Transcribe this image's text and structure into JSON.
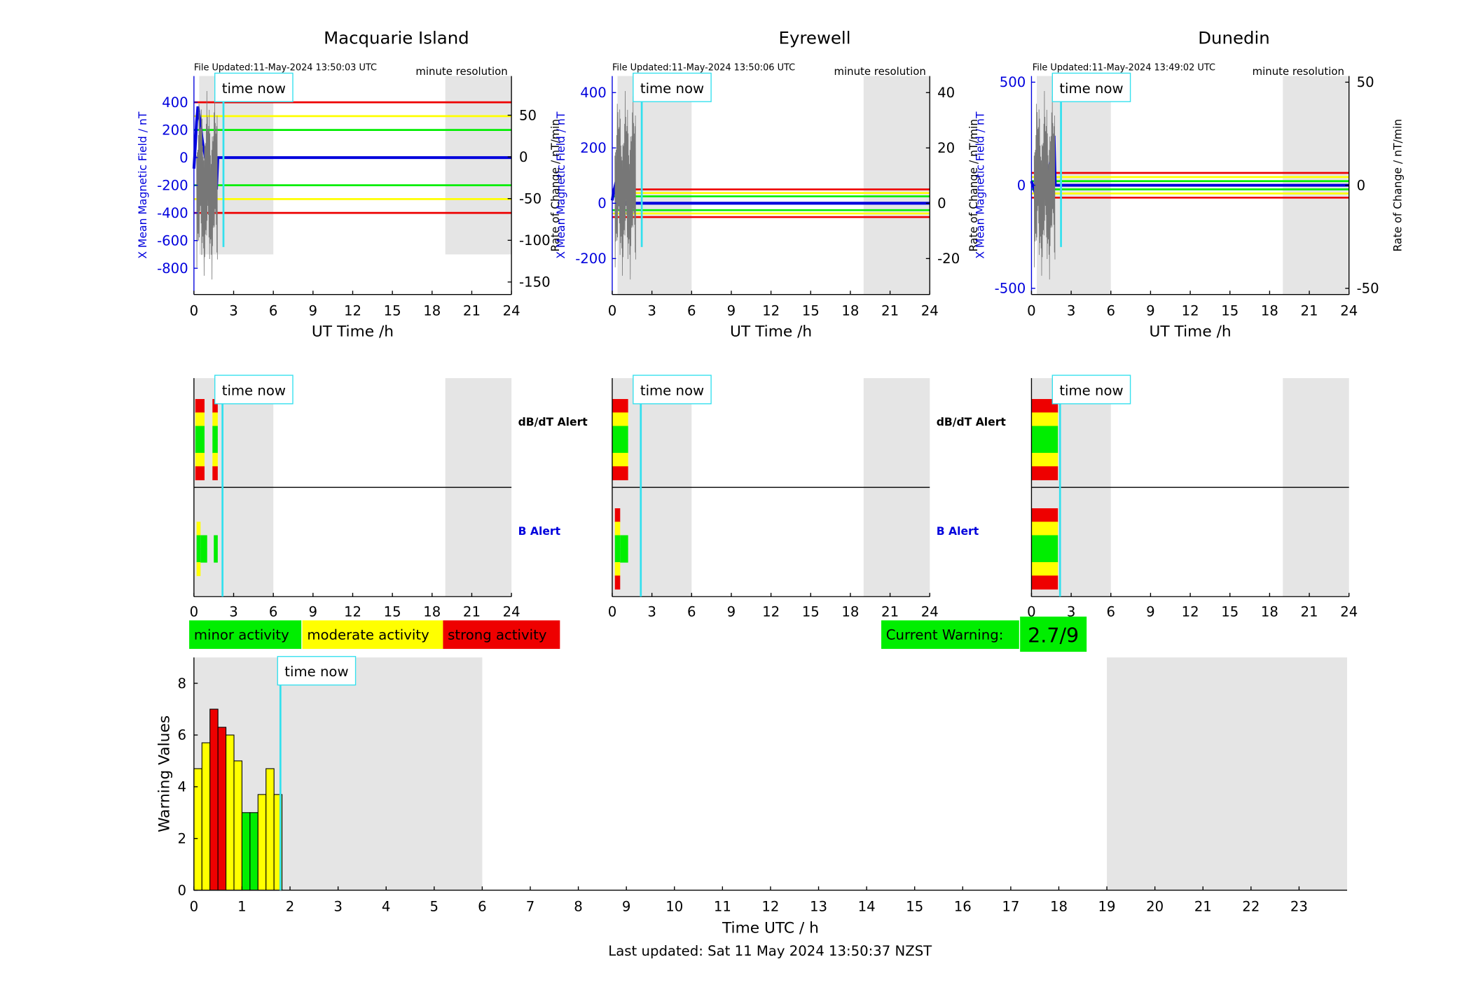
{
  "time_now_label": "time now",
  "now_hour": 1.8,
  "colors": {
    "minor": "#00ee00",
    "moderate": "#ffff00",
    "strong": "#ee0000",
    "shade": "#e5e5e5",
    "now_line": "#33e0ee",
    "field": "#0000dd"
  },
  "panels": [
    {
      "station": "Macquarie Island",
      "file_updated": "File Updated:11-May-2024 13:50:03 UTC",
      "resolution": "minute resolution",
      "ylabel_left": "X Mean Magnetic Field / nT",
      "ylabel_right": "Rate of Change / nT/min",
      "xlabel": "UT Time /h",
      "chart_data": {
        "type": "line",
        "title": "Macquarie Island",
        "xlabel": "UT Time /h",
        "ylabel": "X Mean Magnetic Field / nT",
        "xlim": [
          0,
          24
        ],
        "ylim_left": [
          -990,
          590
        ],
        "left_ticks": [
          400,
          200,
          0,
          -200,
          -400,
          -600,
          -800
        ],
        "ylim_right": [
          -165,
          97
        ],
        "right_ticks": [
          50,
          0,
          -50,
          -100,
          -150
        ],
        "x_ticks": [
          0,
          3,
          6,
          9,
          12,
          15,
          18,
          21,
          24
        ],
        "thresholds": [
          {
            "level": 400,
            "color": "#ee0000"
          },
          {
            "level": 300,
            "color": "#ffff00"
          },
          {
            "level": 200,
            "color": "#00ee00"
          },
          {
            "level": -200,
            "color": "#00ee00"
          },
          {
            "level": -300,
            "color": "#ffff00"
          },
          {
            "level": -400,
            "color": "#ee0000"
          }
        ],
        "shade_ranges": [
          [
            0.4,
            6
          ],
          [
            19,
            24
          ]
        ],
        "shade_bottom": -700,
        "series": [
          {
            "name": "X Mean Magnetic Field",
            "x": [
              0,
              0.1,
              0.2,
              0.3,
              0.4,
              0.5,
              0.6,
              0.7,
              0.8,
              0.9,
              1.0,
              1.1,
              1.2,
              1.3,
              1.4,
              1.5,
              1.6,
              1.7,
              1.8,
              24
            ],
            "y": [
              -80,
              80,
              260,
              370,
              300,
              240,
              150,
              80,
              40,
              -20,
              -60,
              -90,
              -120,
              -150,
              -200,
              -160,
              -210,
              -230,
              0,
              0
            ]
          }
        ]
      }
    },
    {
      "station": "Eyrewell",
      "file_updated": "File Updated:11-May-2024 13:50:06 UTC",
      "resolution": "minute resolution",
      "ylabel_left": "X Mean Magnetic Field / nT",
      "ylabel_right": "Rate of Change / nT/min",
      "xlabel": "UT Time /h",
      "chart_data": {
        "type": "line",
        "title": "Eyrewell",
        "xlabel": "UT Time /h",
        "ylabel": "X Mean Magnetic Field / nT",
        "xlim": [
          0,
          24
        ],
        "ylim_left": [
          -330,
          460
        ],
        "left_ticks": [
          400,
          200,
          0,
          -200
        ],
        "ylim_right": [
          -33,
          46
        ],
        "right_ticks": [
          40,
          20,
          0,
          -20
        ],
        "x_ticks": [
          0,
          3,
          6,
          9,
          12,
          15,
          18,
          21,
          24
        ],
        "thresholds": [
          {
            "level": 50,
            "color": "#ee0000"
          },
          {
            "level": 37,
            "color": "#ffff00"
          },
          {
            "level": 25,
            "color": "#00ee00"
          },
          {
            "level": -25,
            "color": "#00ee00"
          },
          {
            "level": -37,
            "color": "#ffff00"
          },
          {
            "level": -50,
            "color": "#ee0000"
          }
        ],
        "shade_ranges": [
          [
            0.4,
            6
          ],
          [
            19,
            24
          ]
        ],
        "shade_bottom": -330,
        "series": [
          {
            "name": "X Mean Magnetic Field",
            "x": [
              0,
              0.1,
              0.2,
              0.3,
              0.4,
              0.5,
              0.6,
              0.7,
              0.8,
              0.9,
              1.0,
              1.1,
              1.2,
              24
            ],
            "y": [
              10,
              40,
              60,
              80,
              40,
              -10,
              20,
              -20,
              10,
              -10,
              0,
              5,
              0,
              0
            ]
          }
        ]
      }
    },
    {
      "station": "Dunedin",
      "file_updated": "File Updated:11-May-2024 13:49:02 UTC",
      "resolution": "minute resolution",
      "ylabel_left": "X Mean Magnetic Field / nT",
      "ylabel_right": "Rate of Change / nT/min",
      "xlabel": "UT Time /h",
      "chart_data": {
        "type": "line",
        "title": "Dunedin",
        "xlabel": "UT Time /h",
        "ylabel": "X Mean Magnetic Field / nT",
        "xlim": [
          0,
          24
        ],
        "ylim_left": [
          -530,
          530
        ],
        "left_ticks": [
          500,
          0,
          -500
        ],
        "ylim_right": [
          -53,
          53
        ],
        "right_ticks": [
          50,
          0,
          -50
        ],
        "x_ticks": [
          0,
          3,
          6,
          9,
          12,
          15,
          18,
          21,
          24
        ],
        "thresholds": [
          {
            "level": 60,
            "color": "#ee0000"
          },
          {
            "level": 40,
            "color": "#ffff00"
          },
          {
            "level": 20,
            "color": "#00ee00"
          },
          {
            "level": -20,
            "color": "#00ee00"
          },
          {
            "level": -40,
            "color": "#ffff00"
          },
          {
            "level": -60,
            "color": "#ee0000"
          }
        ],
        "shade_ranges": [
          [
            0.4,
            6
          ],
          [
            19,
            24
          ]
        ],
        "shade_bottom": -530,
        "series": [
          {
            "name": "X Mean Magnetic Field",
            "x": [
              0,
              0.2,
              0.4,
              0.6,
              0.8,
              1.0,
              1.2,
              1.4,
              1.5,
              1.6,
              1.7,
              1.8,
              24
            ],
            "y": [
              20,
              -20,
              -60,
              -80,
              -70,
              -40,
              40,
              100,
              150,
              200,
              240,
              0,
              0
            ]
          }
        ]
      }
    }
  ],
  "alerts": {
    "dbdt_label": "dB/dT Alert",
    "b_label": "B Alert",
    "xlim": [
      0,
      24
    ],
    "x_ticks": [
      0,
      3,
      6,
      9,
      12,
      15,
      18,
      21,
      24
    ],
    "panels": [
      {
        "station": "Macquarie Island",
        "dbdt": [
          {
            "x0": 0.1,
            "x1": 0.8,
            "levels": [
              "strong",
              "moderate",
              "minor",
              "minor",
              "moderate",
              "strong"
            ]
          },
          {
            "x0": 1.4,
            "x1": 1.8,
            "levels": [
              "strong",
              "moderate",
              "minor",
              "minor",
              "moderate",
              "strong"
            ]
          }
        ],
        "b": [
          {
            "x0": 0.2,
            "x1": 0.5,
            "levels": [
              "",
              "moderate",
              "minor",
              "minor",
              "moderate",
              ""
            ]
          },
          {
            "x0": 0.5,
            "x1": 1.0,
            "levels": [
              "",
              "",
              "minor",
              "minor",
              "",
              ""
            ]
          },
          {
            "x0": 1.5,
            "x1": 1.8,
            "levels": [
              "",
              "",
              "minor",
              "minor",
              "",
              ""
            ]
          }
        ]
      },
      {
        "station": "Eyrewell",
        "dbdt": [
          {
            "x0": 0.0,
            "x1": 1.2,
            "levels": [
              "strong",
              "moderate",
              "minor",
              "minor",
              "moderate",
              "strong"
            ]
          }
        ],
        "b": [
          {
            "x0": 0.2,
            "x1": 0.6,
            "levels": [
              "strong",
              "moderate",
              "minor",
              "minor",
              "moderate",
              "strong"
            ]
          },
          {
            "x0": 0.6,
            "x1": 1.2,
            "levels": [
              "",
              "",
              "minor",
              "minor",
              "",
              ""
            ]
          }
        ]
      },
      {
        "station": "Dunedin",
        "dbdt": [
          {
            "x0": 0.0,
            "x1": 2.0,
            "levels": [
              "strong",
              "moderate",
              "minor",
              "minor",
              "moderate",
              "strong"
            ]
          }
        ],
        "b": [
          {
            "x0": 0.0,
            "x1": 2.0,
            "levels": [
              "strong",
              "moderate",
              "minor",
              "minor",
              "moderate",
              "strong"
            ]
          }
        ]
      }
    ]
  },
  "legend": {
    "minor": "minor activity",
    "moderate": "moderate activity",
    "strong": "strong activity"
  },
  "current_warning": {
    "label": "Current Warning:",
    "value": "2.7/9"
  },
  "warning_chart": {
    "ylabel": "Warning Values",
    "xlabel": "Time UTC / h",
    "last_updated": "Last updated: Sat 11 May 2024 13:50:37 NZST",
    "chart_data": {
      "type": "bar",
      "xlabel": "Time UTC / h",
      "ylabel": "Warning Values",
      "xlim": [
        0,
        24
      ],
      "ylim": [
        0,
        9
      ],
      "x_ticks": [
        0,
        1,
        2,
        3,
        4,
        5,
        6,
        7,
        8,
        9,
        10,
        11,
        12,
        13,
        14,
        15,
        16,
        17,
        18,
        19,
        20,
        21,
        22,
        23
      ],
      "y_ticks": [
        0,
        2,
        4,
        6,
        8
      ],
      "shade_ranges": [
        [
          0,
          6
        ],
        [
          19,
          24
        ]
      ],
      "bar_width_h": 0.1667,
      "x": [
        0.0,
        0.1667,
        0.3333,
        0.5,
        0.6667,
        0.8333,
        1.0,
        1.1667,
        1.3333,
        1.5,
        1.6667
      ],
      "values": [
        4.7,
        5.7,
        7.0,
        6.3,
        6.0,
        5.0,
        3.0,
        3.0,
        3.7,
        4.7,
        3.7
      ],
      "levels": [
        "moderate",
        "moderate",
        "strong",
        "strong",
        "moderate",
        "moderate",
        "minor",
        "minor",
        "moderate",
        "moderate",
        "moderate"
      ]
    }
  }
}
